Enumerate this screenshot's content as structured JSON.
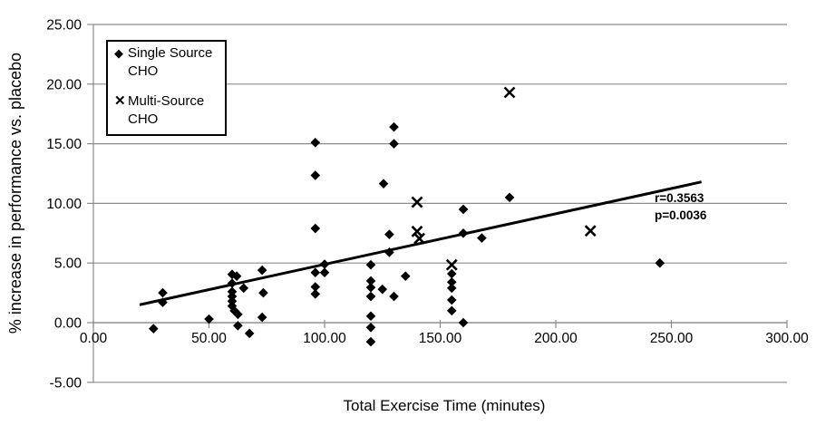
{
  "chart_data": {
    "type": "scatter",
    "title": "",
    "xlabel": "Total Exercise Time (minutes)",
    "ylabel": "% increase in performance vs. placebo",
    "xlim": [
      0,
      300
    ],
    "ylim": [
      -5,
      25
    ],
    "grid": "horizontal",
    "legend_position": "top-left-inside",
    "xticks": {
      "values": [
        0,
        50,
        100,
        150,
        200,
        250,
        300
      ],
      "labels": [
        "0.00",
        "50.00",
        "100.00",
        "150.00",
        "200.00",
        "250.00",
        "300.00"
      ]
    },
    "yticks": {
      "values": [
        -5,
        0,
        5,
        10,
        15,
        20,
        25
      ],
      "labels": [
        "-5.00",
        "0.00",
        "5.00",
        "10.00",
        "15.00",
        "20.00",
        "25.00"
      ]
    },
    "series": [
      {
        "name": "Single Source CHO",
        "marker": "diamond",
        "points": [
          [
            26,
            -0.5
          ],
          [
            30,
            2.5
          ],
          [
            30,
            1.7
          ],
          [
            50,
            0.3
          ],
          [
            60,
            4.05
          ],
          [
            62,
            3.9
          ],
          [
            60,
            3.3
          ],
          [
            60,
            2.6
          ],
          [
            60,
            2.2
          ],
          [
            60,
            1.8
          ],
          [
            60,
            1.4
          ],
          [
            61,
            1.0
          ],
          [
            62.5,
            0.7
          ],
          [
            65,
            2.9
          ],
          [
            62.5,
            -0.25
          ],
          [
            67.5,
            -0.9
          ],
          [
            73,
            4.4
          ],
          [
            73.5,
            2.5
          ],
          [
            73,
            0.45
          ],
          [
            96,
            15.1
          ],
          [
            96,
            12.35
          ],
          [
            96,
            7.9
          ],
          [
            96,
            4.2
          ],
          [
            100,
            4.2
          ],
          [
            100,
            4.9
          ],
          [
            96,
            3.0
          ],
          [
            96,
            2.4
          ],
          [
            120,
            4.85
          ],
          [
            120,
            3.5
          ],
          [
            120,
            2.95
          ],
          [
            120,
            2.2
          ],
          [
            120,
            0.55
          ],
          [
            120,
            -0.4
          ],
          [
            120,
            -1.6
          ],
          [
            125,
            2.8
          ],
          [
            125.5,
            11.65
          ],
          [
            128,
            7.4
          ],
          [
            128,
            5.9
          ],
          [
            130,
            16.4
          ],
          [
            130,
            15.0
          ],
          [
            130,
            2.2
          ],
          [
            135,
            3.9
          ],
          [
            155,
            4.1
          ],
          [
            155,
            3.4
          ],
          [
            155,
            2.9
          ],
          [
            155,
            1.9
          ],
          [
            155,
            1.0
          ],
          [
            160,
            0.0
          ],
          [
            160,
            9.5
          ],
          [
            160,
            7.5
          ],
          [
            168,
            7.1
          ],
          [
            180,
            10.5
          ],
          [
            245,
            5.0
          ]
        ]
      },
      {
        "name": "Multi-Source CHO",
        "marker": "x",
        "points": [
          [
            140,
            10.1
          ],
          [
            140,
            7.65
          ],
          [
            141,
            7.05
          ],
          [
            155,
            4.85
          ],
          [
            180,
            19.3
          ],
          [
            215,
            7.7
          ]
        ]
      }
    ],
    "trendline": {
      "x1": 20,
      "y1": 1.5,
      "x2": 263,
      "y2": 11.8
    },
    "annotation": {
      "line1": "r=0.3563",
      "line2": "p=0.0036"
    }
  },
  "legend": {
    "items": [
      {
        "marker": "diamond-marker-icon",
        "glyph": "◆",
        "label": "Single Source CHO"
      },
      {
        "marker": "x-marker-icon",
        "glyph": "✕",
        "label": "Multi-Source CHO"
      }
    ]
  },
  "colors": {
    "marker": "#000000",
    "trend": "#000000",
    "grid": "#8c8c8c",
    "axis": "#8c8c8c",
    "text": "#000000"
  }
}
